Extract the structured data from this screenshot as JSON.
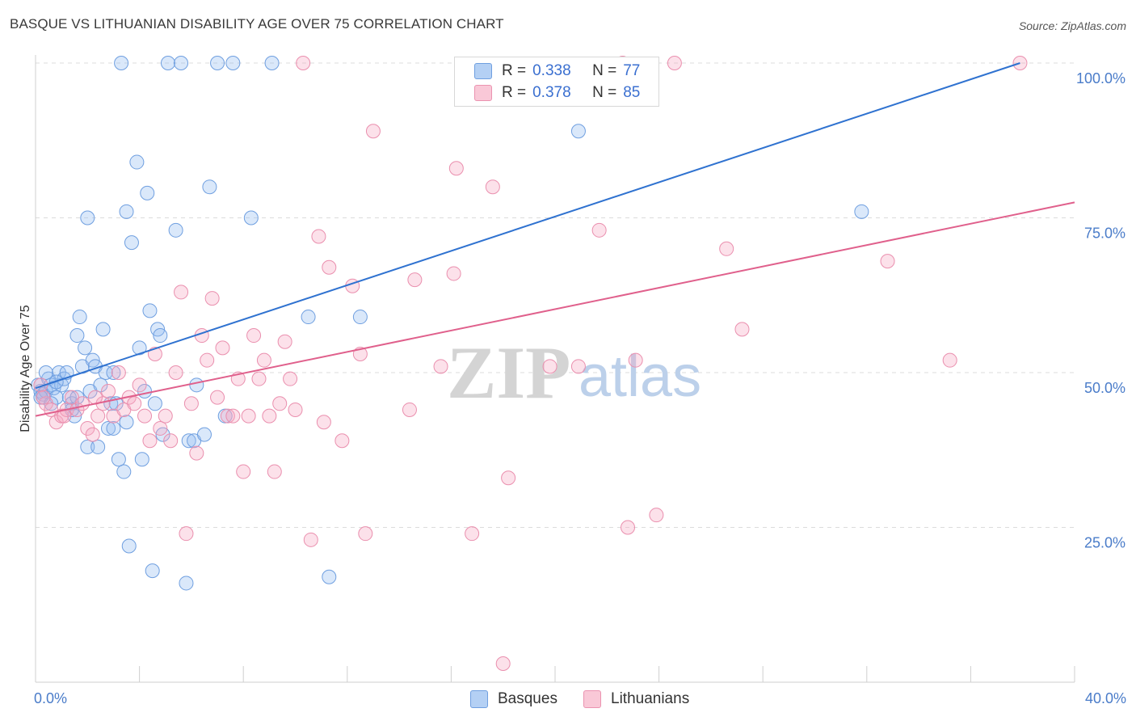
{
  "title": "BASQUE VS LITHUANIAN DISABILITY AGE OVER 75 CORRELATION CHART",
  "source": "Source: ZipAtlas.com",
  "watermark": {
    "zip": "ZIP",
    "atlas": "atlas"
  },
  "legend": {
    "rows": [
      {
        "r_label": "R =",
        "r_value": "0.338",
        "n_label": "N =",
        "n_value": "77"
      },
      {
        "r_label": "R =",
        "r_value": "0.378",
        "n_label": "N =",
        "n_value": "85"
      }
    ]
  },
  "bottom_legend": {
    "basques": "Basques",
    "lithuanians": "Lithuanians"
  },
  "chart_data": {
    "type": "scatter",
    "title": "BASQUE VS LITHUANIAN DISABILITY AGE OVER 75 CORRELATION CHART",
    "xlabel": "",
    "ylabel": "Disability Age Over 75",
    "xlim": [
      0,
      40
    ],
    "ylim": [
      0,
      100
    ],
    "x_tick_labels": [
      "0.0%",
      "40.0%"
    ],
    "y_tick_labels": [
      "25.0%",
      "50.0%",
      "75.0%",
      "100.0%"
    ],
    "y_ticks": [
      25,
      50,
      75,
      100
    ],
    "grid": true,
    "legend_position": "top-center",
    "colors": {
      "basques": "#7aaae8",
      "lithuanians": "#f4a3bd",
      "basques_line": "#2f72d0",
      "lithuanians_line": "#e0608c"
    },
    "series": [
      {
        "name": "Basques",
        "trend": {
          "x": [
            0,
            37.9
          ],
          "y": [
            47.5,
            100
          ]
        },
        "points": [
          [
            0.1,
            48
          ],
          [
            0.2,
            47
          ],
          [
            0.3,
            46
          ],
          [
            0.3,
            46.5
          ],
          [
            0.4,
            47
          ],
          [
            0.5,
            49
          ],
          [
            0.6,
            48
          ],
          [
            0.7,
            47.5
          ],
          [
            0.8,
            46
          ],
          [
            0.9,
            50
          ],
          [
            1.0,
            48
          ],
          [
            1.1,
            49
          ],
          [
            1.2,
            50
          ],
          [
            1.3,
            46
          ],
          [
            1.4,
            45
          ],
          [
            1.5,
            43
          ],
          [
            1.6,
            56
          ],
          [
            1.7,
            59
          ],
          [
            1.8,
            51
          ],
          [
            1.9,
            54
          ],
          [
            2.0,
            38
          ],
          [
            2.1,
            47
          ],
          [
            2.2,
            52
          ],
          [
            2.3,
            51
          ],
          [
            2.4,
            38
          ],
          [
            2.5,
            48
          ],
          [
            2.6,
            57
          ],
          [
            2.7,
            50
          ],
          [
            2.8,
            41
          ],
          [
            2.9,
            45
          ],
          [
            3.0,
            41
          ],
          [
            3.1,
            45
          ],
          [
            3.2,
            36
          ],
          [
            3.3,
            100
          ],
          [
            3.4,
            34
          ],
          [
            3.5,
            42
          ],
          [
            3.6,
            22
          ],
          [
            3.7,
            71
          ],
          [
            3.9,
            84
          ],
          [
            4.0,
            54
          ],
          [
            4.1,
            36
          ],
          [
            4.3,
            79
          ],
          [
            4.4,
            60
          ],
          [
            4.5,
            18
          ],
          [
            4.6,
            45
          ],
          [
            4.7,
            57
          ],
          [
            4.8,
            56
          ],
          [
            4.9,
            40
          ],
          [
            5.1,
            100
          ],
          [
            5.4,
            73
          ],
          [
            5.6,
            100
          ],
          [
            5.8,
            16
          ],
          [
            5.9,
            39
          ],
          [
            6.1,
            39
          ],
          [
            6.2,
            48
          ],
          [
            6.5,
            40
          ],
          [
            6.7,
            80
          ],
          [
            7.0,
            100
          ],
          [
            7.3,
            43
          ],
          [
            7.6,
            100
          ],
          [
            8.3,
            75
          ],
          [
            9.1,
            100
          ],
          [
            10.5,
            59
          ],
          [
            11.3,
            17
          ],
          [
            12.5,
            59
          ],
          [
            20.9,
            89
          ],
          [
            31.8,
            76
          ],
          [
            0.2,
            46
          ],
          [
            0.4,
            50
          ],
          [
            0.6,
            45
          ],
          [
            1.4,
            44
          ],
          [
            2.0,
            75
          ],
          [
            3.0,
            50
          ],
          [
            3.5,
            76
          ],
          [
            4.2,
            47
          ],
          [
            0.8,
            48.5
          ],
          [
            1.6,
            46
          ]
        ]
      },
      {
        "name": "Lithuanians",
        "trend": {
          "x": [
            0,
            40
          ],
          "y": [
            43,
            77.5
          ]
        },
        "points": [
          [
            0.2,
            48
          ],
          [
            0.4,
            45
          ],
          [
            0.6,
            44
          ],
          [
            0.8,
            42
          ],
          [
            1.0,
            43
          ],
          [
            1.2,
            44
          ],
          [
            1.4,
            46
          ],
          [
            1.6,
            44
          ],
          [
            1.8,
            45
          ],
          [
            2.0,
            41
          ],
          [
            2.2,
            40
          ],
          [
            2.4,
            43
          ],
          [
            2.6,
            45
          ],
          [
            2.8,
            47
          ],
          [
            3.0,
            43
          ],
          [
            3.2,
            50
          ],
          [
            3.4,
            44
          ],
          [
            3.6,
            46
          ],
          [
            3.8,
            45
          ],
          [
            4.0,
            48
          ],
          [
            4.2,
            43
          ],
          [
            4.4,
            39
          ],
          [
            4.6,
            53
          ],
          [
            4.8,
            41
          ],
          [
            5.0,
            43
          ],
          [
            5.2,
            39
          ],
          [
            5.4,
            50
          ],
          [
            5.6,
            63
          ],
          [
            5.8,
            24
          ],
          [
            6.0,
            45
          ],
          [
            6.2,
            37
          ],
          [
            6.4,
            56
          ],
          [
            6.6,
            52
          ],
          [
            6.8,
            62
          ],
          [
            7.0,
            46
          ],
          [
            7.2,
            54
          ],
          [
            7.4,
            43
          ],
          [
            7.6,
            43
          ],
          [
            7.8,
            49
          ],
          [
            8.0,
            34
          ],
          [
            8.2,
            43
          ],
          [
            8.4,
            56
          ],
          [
            8.6,
            49
          ],
          [
            8.8,
            52
          ],
          [
            9.0,
            43
          ],
          [
            9.2,
            34
          ],
          [
            9.4,
            45
          ],
          [
            9.6,
            55
          ],
          [
            9.8,
            49
          ],
          [
            10.0,
            44
          ],
          [
            10.3,
            100
          ],
          [
            10.6,
            23
          ],
          [
            10.9,
            72
          ],
          [
            11.1,
            42
          ],
          [
            11.3,
            67
          ],
          [
            11.8,
            39
          ],
          [
            12.2,
            64
          ],
          [
            12.5,
            53
          ],
          [
            12.7,
            24
          ],
          [
            13.0,
            89
          ],
          [
            14.4,
            44
          ],
          [
            14.6,
            65
          ],
          [
            15.6,
            51
          ],
          [
            16.1,
            66
          ],
          [
            16.2,
            83
          ],
          [
            16.8,
            24
          ],
          [
            17.6,
            80
          ],
          [
            18.0,
            3
          ],
          [
            18.2,
            33
          ],
          [
            19.8,
            51
          ],
          [
            20.9,
            51
          ],
          [
            21.7,
            73
          ],
          [
            22.6,
            100
          ],
          [
            22.8,
            25
          ],
          [
            23.1,
            52
          ],
          [
            23.9,
            27
          ],
          [
            24.6,
            100
          ],
          [
            26.6,
            70
          ],
          [
            27.2,
            57
          ],
          [
            32.8,
            68
          ],
          [
            35.2,
            52
          ],
          [
            37.9,
            100
          ],
          [
            0.3,
            46
          ],
          [
            1.1,
            43
          ],
          [
            2.3,
            46
          ]
        ]
      }
    ]
  }
}
